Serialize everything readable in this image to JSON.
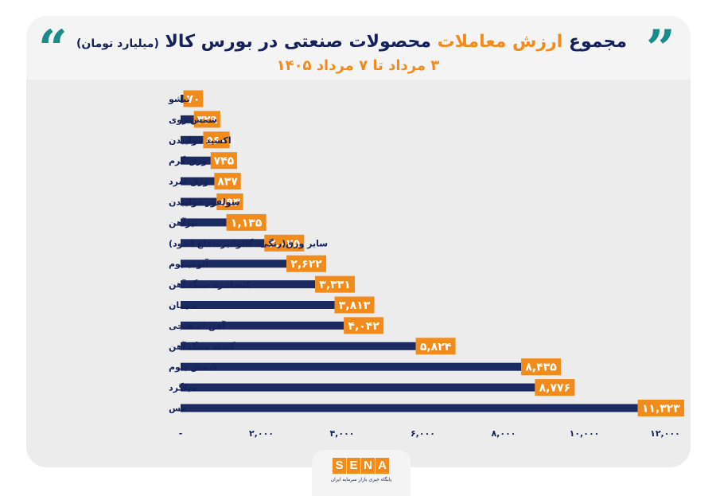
{
  "title": {
    "part1": "مجموع",
    "part2": "ارزش معاملات",
    "part3": "محصولات صنعتی در بورس کالا",
    "unit": "(میلیارد تومان)",
    "subtitle": "۳ مرداد تا ۷ مرداد ۱۴۰۵"
  },
  "logo": {
    "letters": [
      "S",
      "E",
      "N",
      "A"
    ],
    "tagline": "پایگاه خبری بازار سرمایه ایران"
  },
  "colors": {
    "bar": "#1c2a62",
    "label_bg": "#f08b1c",
    "label_text": "#ffffff",
    "title": "#14215a",
    "accent": "#f08b1c",
    "quote": "#1a8c8c"
  },
  "chart_data": {
    "type": "bar",
    "orientation": "horizontal",
    "categories": [
      "تیشو",
      "شمش روی",
      "اکسید مولیبدن",
      "ورق گرم",
      "ورق سرد",
      "سولفور مولیبدن",
      "تیرآهن",
      "سایر ورق(رنگی، گالوانیزه،قلع اندود)",
      "آلومینیوم",
      "کنسانتره سنگ آهن",
      "سیمان",
      "آهن اسفنجی",
      "گندله سنگ آهن",
      "شمش بلوم",
      "میلگرد",
      "مس"
    ],
    "values": [
      70,
      329,
      560,
      745,
      837,
      893,
      1135,
      2075,
      2622,
      3331,
      3813,
      4042,
      5824,
      8435,
      8776,
      11323
    ],
    "data_labels": [
      "۷۰",
      "۳۲۹",
      "۵۶۰",
      "۷۴۵",
      "۸۳۷",
      "۸۹۳",
      "۱,۱۳۵",
      "۲,۰۷۵",
      "۲,۶۲۲",
      "۳,۳۳۱",
      "۳,۸۱۳",
      "۴,۰۴۲",
      "۵,۸۲۴",
      "۸,۴۳۵",
      "۸,۷۷۶",
      "۱۱,۳۲۳"
    ],
    "xlim": [
      0,
      12000
    ],
    "x_ticks": [
      0,
      2000,
      4000,
      6000,
      8000,
      10000,
      12000
    ],
    "x_tick_labels": [
      "-",
      "۲,۰۰۰",
      "۴,۰۰۰",
      "۶,۰۰۰",
      "۸,۰۰۰",
      "۱۰,۰۰۰",
      "۱۲,۰۰۰"
    ],
    "grid": false,
    "legend": "none"
  }
}
